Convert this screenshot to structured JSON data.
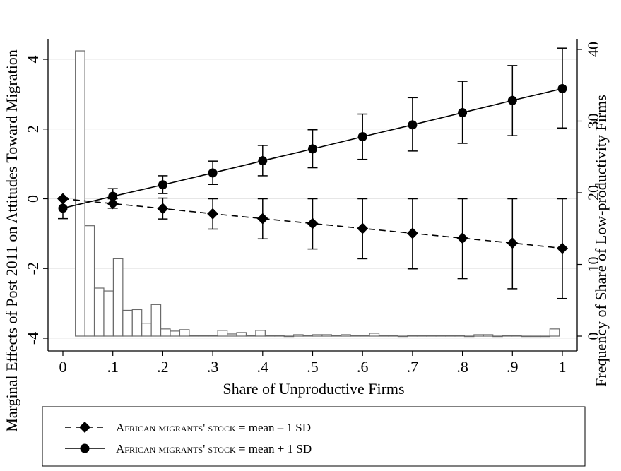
{
  "chart_data": {
    "type": "line",
    "xlabel": "Share of Unproductive Firms",
    "ylabel_left": "Marginal Effects of Post 2011 on Attitudes Toward Migration",
    "ylabel_right": "Frequency of Share of Low-productivity Firms",
    "xlim": [
      0,
      1
    ],
    "ylim_left": [
      -4,
      4
    ],
    "ylim_right": [
      0,
      40
    ],
    "x_ticks": [
      0,
      0.1,
      0.2,
      0.3,
      0.4,
      0.5,
      0.6,
      0.7,
      0.8,
      0.9,
      1
    ],
    "x_tick_labels": [
      "0",
      ".1",
      ".2",
      ".3",
      ".4",
      ".5",
      ".6",
      ".7",
      ".8",
      ".9",
      "1"
    ],
    "y_left_ticks": [
      -4,
      -2,
      0,
      2,
      4
    ],
    "y_left_tick_labels": [
      "-4",
      "-2",
      "0",
      "2",
      "4"
    ],
    "y_right_ticks": [
      0,
      10,
      20,
      30,
      40
    ],
    "y_right_tick_labels": [
      "0",
      "10",
      "20",
      "30",
      "40"
    ],
    "grid": "horizontal",
    "legend_position": "bottom",
    "series": [
      {
        "name": "African migrants' stock = mean – 1 SD",
        "legend_smallcaps": "African migrants' stock",
        "legend_suffix": " = mean – 1 SD",
        "marker": "diamond",
        "line_style": "dashed",
        "x": [
          0,
          0.1,
          0.2,
          0.3,
          0.4,
          0.5,
          0.6,
          0.7,
          0.8,
          0.9,
          1
        ],
        "y": [
          0.0,
          -0.14,
          -0.28,
          -0.43,
          -0.57,
          -0.71,
          -0.85,
          -0.99,
          -1.13,
          -1.27,
          -1.42
        ],
        "ci_low": [
          null,
          -0.27,
          -0.58,
          -0.87,
          -1.15,
          -1.44,
          -1.72,
          -2.01,
          -2.29,
          -2.58,
          -2.86
        ],
        "ci_high": [
          null,
          0.0,
          0.02,
          0.0,
          0.0,
          0.0,
          0.0,
          0.0,
          0.0,
          0.0,
          0.0
        ]
      },
      {
        "name": "African migrants' stock = mean + 1 SD",
        "legend_smallcaps": "African migrants' stock",
        "legend_suffix": " = mean + 1 SD",
        "marker": "circle",
        "line_style": "solid",
        "x": [
          0,
          0.1,
          0.2,
          0.3,
          0.4,
          0.5,
          0.6,
          0.7,
          0.8,
          0.9,
          1
        ],
        "y": [
          -0.27,
          0.07,
          0.4,
          0.74,
          1.09,
          1.43,
          1.78,
          2.12,
          2.47,
          2.82,
          3.16
        ],
        "ci_low": [
          -0.57,
          -0.14,
          0.15,
          0.41,
          0.66,
          0.89,
          1.13,
          1.37,
          1.59,
          1.81,
          2.03
        ],
        "ci_high": [
          0.03,
          0.29,
          0.66,
          1.08,
          1.53,
          1.98,
          2.43,
          2.9,
          3.37,
          3.82,
          4.32
        ]
      }
    ],
    "histogram": {
      "bin_width": 0.019,
      "x_start": [
        0.025,
        0.044,
        0.063,
        0.082,
        0.101,
        0.12,
        0.139,
        0.158,
        0.177,
        0.196,
        0.215,
        0.234,
        0.253,
        0.272,
        0.291,
        0.31,
        0.329,
        0.348,
        0.367,
        0.386,
        0.405,
        0.424,
        0.443,
        0.462,
        0.481,
        0.5,
        0.519,
        0.538,
        0.557,
        0.576,
        0.595,
        0.614,
        0.633,
        0.652,
        0.671,
        0.69,
        0.709,
        0.728,
        0.747,
        0.766,
        0.785,
        0.804,
        0.823,
        0.842,
        0.861,
        0.88,
        0.899,
        0.918,
        0.937,
        0.956,
        0.975
      ],
      "frequency": [
        39.8,
        15.4,
        6.7,
        6.3,
        10.8,
        3.6,
        3.7,
        1.8,
        4.4,
        1.0,
        0.7,
        0.9,
        0.1,
        0.1,
        0.1,
        0.8,
        0.3,
        0.5,
        0.1,
        0.8,
        0.1,
        0.1,
        0.0,
        0.2,
        0.1,
        0.2,
        0.2,
        0.1,
        0.2,
        0.1,
        0.1,
        0.4,
        0.1,
        0.1,
        0.0,
        0.1,
        0.1,
        0.1,
        0.1,
        0.1,
        0.1,
        0.0,
        0.2,
        0.2,
        0.0,
        0.1,
        0.1,
        0.0,
        0.0,
        0.0,
        1.0
      ]
    }
  }
}
